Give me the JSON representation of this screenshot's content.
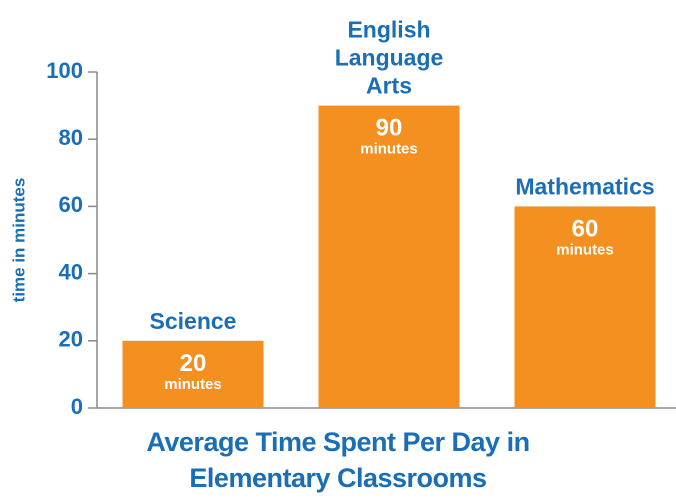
{
  "chart_data": {
    "type": "bar",
    "title": "Average Time Spent Per Day in Elementary Classrooms",
    "y_label": "time in minutes",
    "categories": [
      "Science",
      "English Language Arts",
      "Mathematics"
    ],
    "values": [
      20,
      90,
      60
    ],
    "value_labels": [
      "20 minutes",
      "90 minutes",
      "60 minutes"
    ],
    "color": "#f39020",
    "ylim": [
      0,
      100
    ],
    "yticks": [
      0,
      20,
      40,
      60,
      80,
      100
    ]
  }
}
